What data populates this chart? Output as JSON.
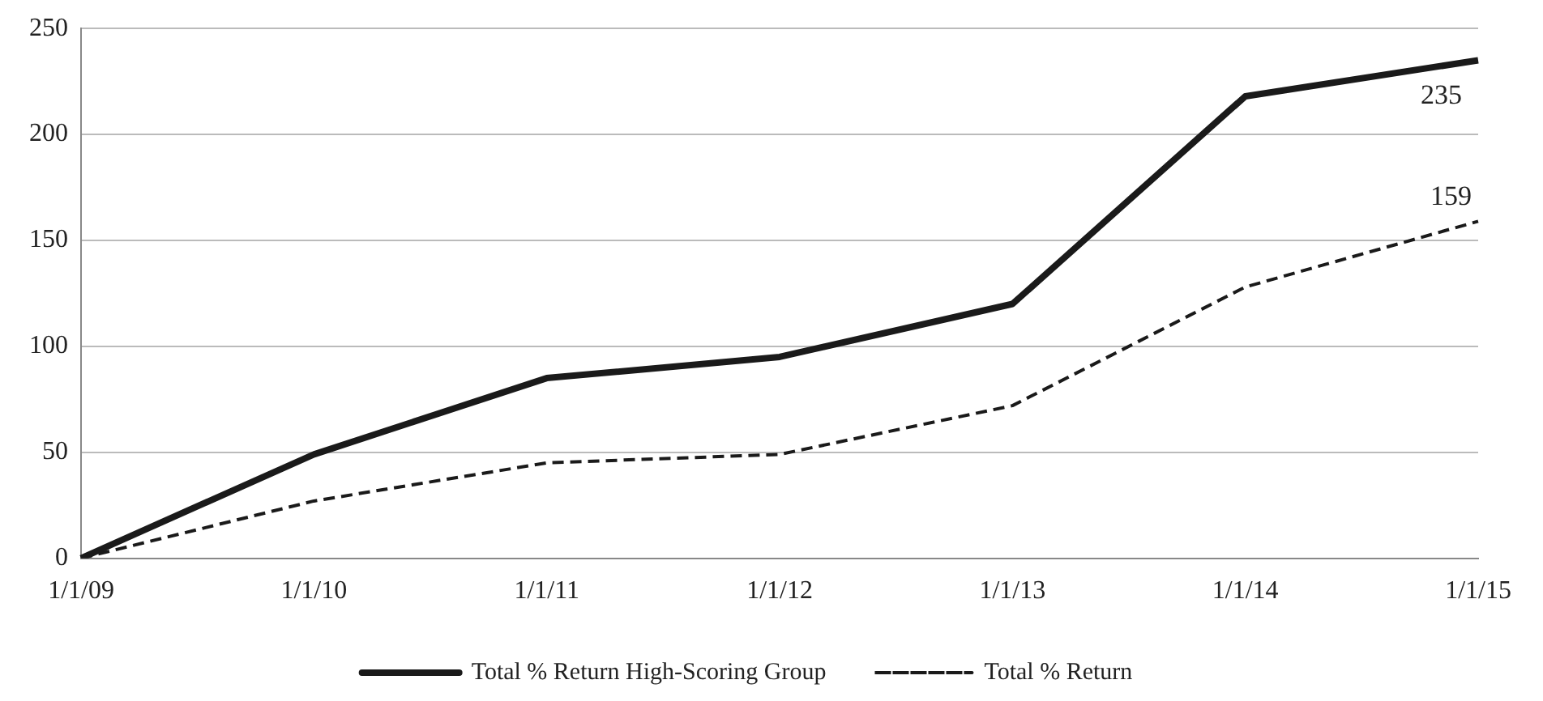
{
  "chart_data": {
    "type": "line",
    "categories": [
      "1/1/09",
      "1/1/10",
      "1/1/11",
      "1/1/12",
      "1/1/13",
      "1/1/14",
      "1/1/15"
    ],
    "series": [
      {
        "name": "Total % Return High-Scoring Group",
        "color": "#1a1a1a",
        "line_style": "solid",
        "values": [
          0,
          49,
          85,
          95,
          120,
          218,
          235
        ],
        "value_labels": [
          null,
          null,
          null,
          null,
          null,
          null,
          "235"
        ]
      },
      {
        "name": "Total % Return",
        "color": "#1a1a1a",
        "line_style": "dashed",
        "values": [
          0,
          27,
          45,
          49,
          72,
          128,
          159
        ],
        "value_labels": [
          null,
          null,
          null,
          null,
          null,
          null,
          "159"
        ]
      }
    ],
    "ylim": [
      0,
      250
    ],
    "yticks": [
      0,
      50,
      100,
      150,
      200,
      250
    ],
    "grid": "y",
    "legend": "bottom",
    "marker": "none"
  }
}
